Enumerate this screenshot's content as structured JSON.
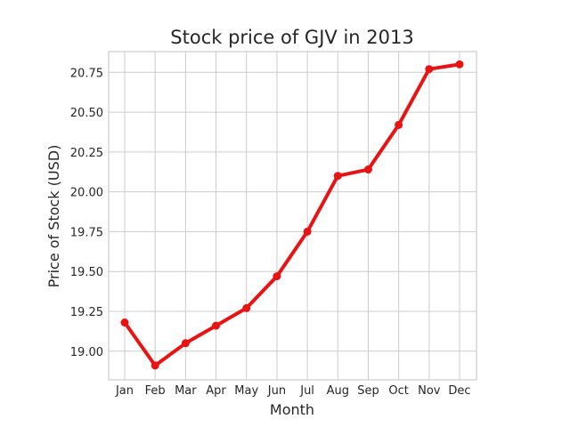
{
  "chart_data": {
    "type": "line",
    "title": "Stock price of GJV in 2013",
    "xlabel": "Month",
    "ylabel": "Price of Stock (USD)",
    "categories": [
      "Jan",
      "Feb",
      "Mar",
      "Apr",
      "May",
      "Jun",
      "Jul",
      "Aug",
      "Sep",
      "Oct",
      "Nov",
      "Dec"
    ],
    "series": [
      {
        "values": [
          19.18,
          18.91,
          19.05,
          19.16,
          19.27,
          19.47,
          19.75,
          20.1,
          20.14,
          20.42,
          20.77,
          20.8
        ],
        "color": "#e81313"
      }
    ],
    "ylim": [
      18.82,
      20.88
    ],
    "yticks": [
      19.0,
      19.25,
      19.5,
      19.75,
      20.0,
      20.25,
      20.5,
      20.75
    ],
    "ytick_labels": [
      "19.00",
      "19.25",
      "19.50",
      "19.75",
      "20.00",
      "20.25",
      "20.50",
      "20.75"
    ],
    "grid": true,
    "colors": {
      "grid": "#cccccc",
      "axes_border": "#cccccc",
      "text": "#262626"
    }
  }
}
